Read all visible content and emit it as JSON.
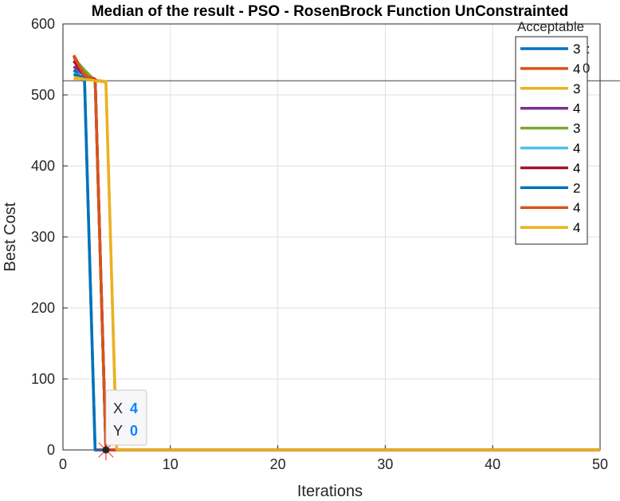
{
  "chart_data": {
    "type": "line",
    "title": "Median of the result - PSO - RosenBrock Function UnConstrainted",
    "xlabel": "Iterations",
    "ylabel": "Best Cost",
    "xlim": [
      0,
      50
    ],
    "ylim": [
      0,
      600
    ],
    "xticks": [
      0,
      10,
      20,
      30,
      40,
      50
    ],
    "yticks": [
      0,
      100,
      200,
      300,
      400,
      500,
      600
    ],
    "grid": true,
    "reference_line": {
      "y": 520
    },
    "legend": {
      "placement": "top-right",
      "title": "Acceptable",
      "clipped_title_fragments": [
        ":",
        "0"
      ],
      "entries": [
        {
          "label": "3",
          "color": "#0072BD"
        },
        {
          "label": "4",
          "color": "#D95319"
        },
        {
          "label": "3",
          "color": "#EDB120"
        },
        {
          "label": "4",
          "color": "#7E2F8E"
        },
        {
          "label": "3",
          "color": "#77AC30"
        },
        {
          "label": "4",
          "color": "#4DBEEE"
        },
        {
          "label": "4",
          "color": "#A2142F"
        },
        {
          "label": "2",
          "color": "#0072BD"
        },
        {
          "label": "4",
          "color": "#D95319"
        },
        {
          "label": "4",
          "color": "#EDB120"
        }
      ]
    },
    "series": [
      {
        "color": "#0072BD",
        "x": [
          1,
          2,
          3,
          50
        ],
        "y": [
          535,
          522,
          0,
          0
        ]
      },
      {
        "color": "#D95319",
        "x": [
          1,
          2,
          3,
          4,
          50
        ],
        "y": [
          556,
          530,
          522,
          0,
          0
        ]
      },
      {
        "color": "#EDB120",
        "x": [
          1,
          2,
          3,
          4,
          5,
          50
        ],
        "y": [
          523,
          523,
          521,
          519,
          0,
          0
        ]
      },
      {
        "color": "#7E2F8E",
        "x": [
          1,
          2,
          3,
          4,
          50
        ],
        "y": [
          540,
          528,
          522,
          0,
          0
        ]
      },
      {
        "color": "#77AC30",
        "x": [
          1,
          2,
          3,
          4,
          50
        ],
        "y": [
          552,
          535,
          520,
          0,
          0
        ]
      },
      {
        "color": "#4DBEEE",
        "x": [
          1,
          2,
          3,
          4,
          50
        ],
        "y": [
          530,
          525,
          521,
          0,
          0
        ]
      },
      {
        "color": "#A2142F",
        "x": [
          1,
          2,
          3,
          4,
          50
        ],
        "y": [
          548,
          527,
          522,
          0,
          0
        ]
      },
      {
        "color": "#0072BD",
        "x": [
          1,
          2,
          3,
          50
        ],
        "y": [
          529,
          524,
          0,
          0
        ]
      },
      {
        "color": "#D95319",
        "x": [
          1,
          2,
          3,
          4,
          50
        ],
        "y": [
          555,
          528,
          521,
          0,
          0
        ]
      },
      {
        "color": "#EDB120",
        "x": [
          1,
          2,
          3,
          4,
          5,
          50
        ],
        "y": [
          525,
          522,
          520,
          518,
          0,
          0
        ]
      }
    ],
    "datatip": {
      "x": 4,
      "y": 0,
      "x_label": "X",
      "y_label": "Y",
      "x_value": "4",
      "y_value": "0"
    }
  }
}
